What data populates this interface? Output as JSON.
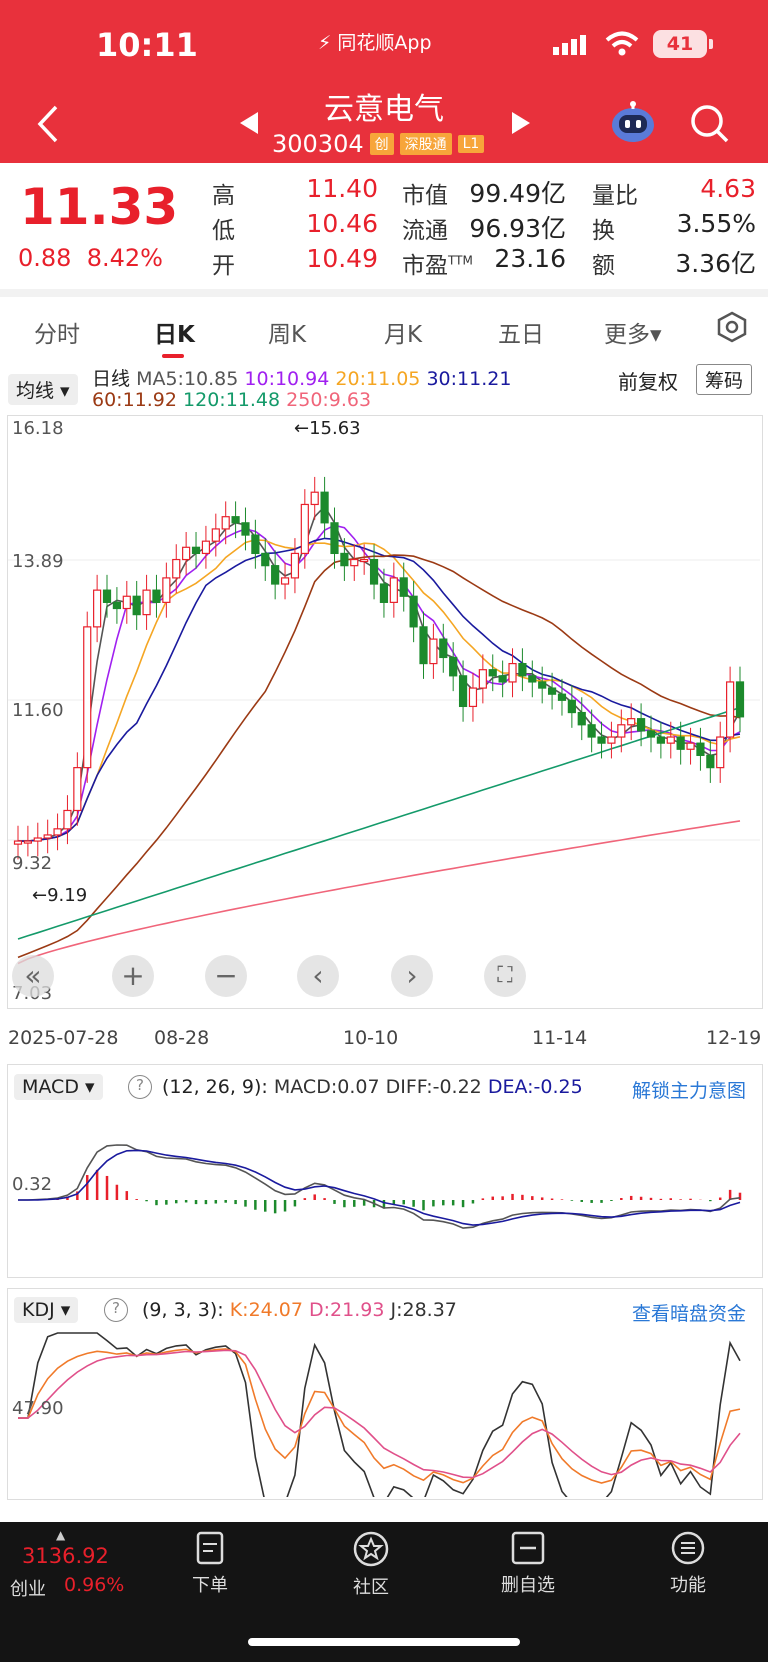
{
  "status": {
    "time": "10:11",
    "app_source": "同花顺App",
    "battery": "41"
  },
  "stock": {
    "name": "云意电气",
    "code": "300304",
    "tags": [
      "创",
      "深股通",
      "L1"
    ]
  },
  "quote": {
    "price": "11.33",
    "change": "0.88",
    "change_pct": "8.42%",
    "high_label": "高",
    "high": "11.40",
    "low_label": "低",
    "low": "10.46",
    "open_label": "开",
    "open": "10.49",
    "mktcap_label": "市值",
    "mktcap": "99.49亿",
    "float_label": "流通",
    "float": "96.93亿",
    "pe_label": "市盈",
    "pe_sup": "TTM",
    "pe": "23.16",
    "vol_ratio_label": "量比",
    "vol_ratio": "4.63",
    "turnover_label": "换",
    "turnover": "3.55%",
    "amount_label": "额",
    "amount": "3.36亿"
  },
  "tabs": [
    "分时",
    "日K",
    "周K",
    "月K",
    "五日",
    "更多▾"
  ],
  "chart": {
    "ma_select": "均线 ▾",
    "period_label": "日线",
    "ma5": "MA5:10.85",
    "ma10": "10:10.94",
    "ma20": "20:11.05",
    "ma30": "30:11.21",
    "ma60": "60:11.92",
    "ma120": "120:11.48",
    "ma250": "250:9.63",
    "adjust": "前复权",
    "chips": "筹码",
    "y_labels": [
      "16.18",
      "13.89",
      "11.60",
      "9.32",
      "7.03"
    ],
    "max_label": "←15.63",
    "min_label": "←9.19",
    "dates": [
      "2025-07-28",
      "08-28",
      "10-10",
      "11-14",
      "12-19"
    ],
    "colors": {
      "up": "#e8202b",
      "down": "#1c8a2c",
      "ma5": "#555555",
      "ma10": "#a020f0",
      "ma20": "#f5a623",
      "ma30": "#1a1a9e",
      "ma60": "#9b3a14",
      "ma120": "#149a6a",
      "ma250": "#f0657a"
    }
  },
  "macd": {
    "select": "MACD ▾",
    "params": "(12, 26, 9):",
    "macd": "MACD:0.07",
    "diff": "DIFF:-0.22",
    "dea": "DEA:-0.25",
    "link": "解锁主力意图",
    "y_label": "0.32"
  },
  "kdj": {
    "select": "KDJ ▾",
    "params": "(9, 3, 3):",
    "k": "K:24.07",
    "d": "D:21.93",
    "j": "J:28.37",
    "link": "查看暗盘资金",
    "y_label": "47.90"
  },
  "bottom": {
    "index_value": "3136.92",
    "index_name": "创业",
    "index_pct": "0.96%",
    "nav": [
      "下单",
      "社区",
      "删自选",
      "功能"
    ]
  },
  "chart_data": {
    "type": "candlestick",
    "y_range": [
      7.03,
      16.18
    ],
    "x_dates": [
      "2025-07-28",
      "08-28",
      "10-10",
      "11-14",
      "12-19"
    ],
    "close_trend": [
      9.3,
      9.3,
      9.35,
      9.4,
      9.5,
      9.8,
      10.5,
      12.8,
      13.4,
      13.2,
      13.1,
      13.3,
      13.0,
      13.4,
      13.2,
      13.6,
      13.9,
      14.1,
      14.0,
      14.2,
      14.4,
      14.6,
      14.5,
      14.3,
      14.0,
      13.8,
      13.5,
      13.6,
      14.0,
      14.8,
      15.0,
      14.5,
      14.0,
      13.8,
      13.9,
      13.9,
      13.5,
      13.2,
      13.6,
      13.3,
      12.8,
      12.2,
      12.6,
      12.3,
      12.0,
      11.5,
      11.8,
      12.1,
      12.0,
      11.9,
      12.2,
      12.0,
      11.9,
      11.8,
      11.7,
      11.6,
      11.4,
      11.2,
      11.0,
      10.9,
      11.0,
      11.2,
      11.3,
      11.1,
      11.0,
      10.9,
      11.0,
      10.8,
      10.9,
      10.7,
      10.5,
      11.0,
      11.9,
      11.33
    ],
    "series_current": {
      "MA5": 10.85,
      "MA10": 10.94,
      "MA20": 11.05,
      "MA30": 11.21,
      "MA60": 11.92,
      "MA120": 11.48,
      "MA250": 9.63
    },
    "macd": {
      "MACD": 0.07,
      "DIFF": -0.22,
      "DEA": -0.25
    },
    "kdj": {
      "K": 24.07,
      "D": 21.93,
      "J": 28.37
    }
  }
}
